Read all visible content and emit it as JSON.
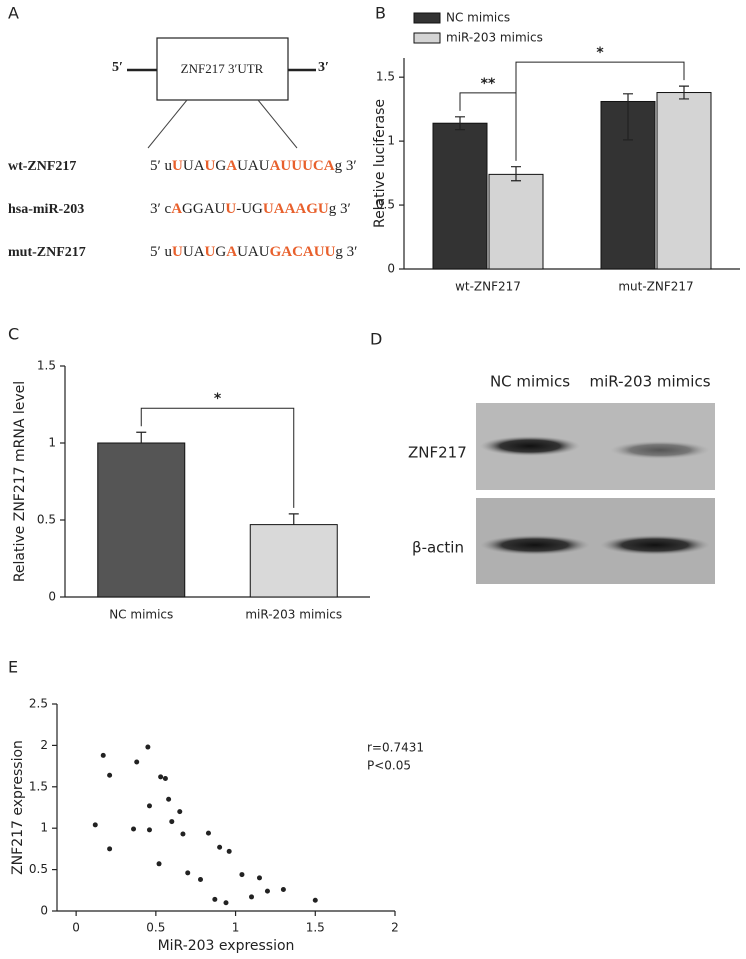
{
  "panel_a": {
    "label": "A",
    "box_label": "ZNF217 3′UTR",
    "five_prime": "5′",
    "three_prime": "3′",
    "rows": [
      {
        "name": "wt-ZNF217",
        "sequence": [
          {
            "text": "5′ u"
          },
          {
            "text": "U",
            "highlight": true
          },
          {
            "text": "UA"
          },
          {
            "text": "U",
            "highlight": true
          },
          {
            "text": "G"
          },
          {
            "text": "A",
            "highlight": true
          },
          {
            "text": "UAU"
          },
          {
            "text": "AUUUCA",
            "highlight": true
          },
          {
            "text": "g 3′"
          }
        ]
      },
      {
        "name": "hsa-miR-203",
        "sequence": [
          {
            "text": "3′ c"
          },
          {
            "text": "A",
            "highlight": true
          },
          {
            "text": "GGAU"
          },
          {
            "text": "U",
            "highlight": true
          },
          {
            "text": "-UG"
          },
          {
            "text": "UAAAGU",
            "highlight": true
          },
          {
            "text": "g 3′"
          }
        ]
      },
      {
        "name": "mut-ZNF217",
        "sequence": [
          {
            "text": "5′ u"
          },
          {
            "text": "U",
            "highlight": true
          },
          {
            "text": "UA"
          },
          {
            "text": "U",
            "highlight": true
          },
          {
            "text": "G"
          },
          {
            "text": "A",
            "highlight": true
          },
          {
            "text": "UAU"
          },
          {
            "text": "GACAUU",
            "highlight": true
          },
          {
            "text": "g 3′"
          }
        ]
      }
    ]
  },
  "chart_data": [
    {
      "type": "bar",
      "panel_label": "B",
      "ylabel": "Relative luciferase",
      "categories": [
        "wt-ZNF217",
        "mut-ZNF217"
      ],
      "series": [
        {
          "name": "NC mimics",
          "color": "#333333",
          "values": [
            1.14,
            1.31
          ],
          "error_minus": [
            0.05,
            0.3
          ],
          "error_plus": [
            0.05,
            0.06
          ]
        },
        {
          "name": "miR-203 mimics",
          "color": "#d4d4d4",
          "values": [
            0.74,
            1.38
          ],
          "error_minus": [
            0.05,
            0.05
          ],
          "error_plus": [
            0.06,
            0.05
          ]
        }
      ],
      "ylim": [
        0,
        1.65
      ],
      "yticks": [
        0,
        0.5,
        1,
        1.5
      ],
      "significance": [
        "**",
        "*"
      ],
      "legend": "top-left"
    },
    {
      "type": "bar",
      "panel_label": "C",
      "ylabel": "Relative ZNF217 mRNA level",
      "categories": [
        "NC mimics",
        "miR-203 mimics"
      ],
      "values": [
        1.0,
        0.47
      ],
      "errors": [
        0.07,
        0.07
      ],
      "colors": [
        "#555555",
        "#d9d9d9"
      ],
      "ylim": [
        0,
        1.5
      ],
      "yticks": [
        0,
        0.5,
        1,
        1.5
      ],
      "significance": [
        "*"
      ]
    },
    {
      "type": "scatter",
      "panel_label": "E",
      "xlabel": "MiR-203 expression",
      "ylabel": "ZNF217 expression",
      "x": [
        0.12,
        0.17,
        0.21,
        0.21,
        0.36,
        0.38,
        0.45,
        0.46,
        0.46,
        0.52,
        0.53,
        0.56,
        0.58,
        0.6,
        0.65,
        0.67,
        0.7,
        0.78,
        0.83,
        0.87,
        0.9,
        0.96,
        0.94,
        1.04,
        1.1,
        1.15,
        1.2,
        1.3,
        1.5
      ],
      "values": [
        1.04,
        1.88,
        1.64,
        0.75,
        0.99,
        1.8,
        1.98,
        1.27,
        0.98,
        0.57,
        1.62,
        1.6,
        1.35,
        1.08,
        1.2,
        0.93,
        0.46,
        0.38,
        0.94,
        0.14,
        0.77,
        0.72,
        0.1,
        0.44,
        0.17,
        0.4,
        0.24,
        0.26,
        0.13
      ],
      "color": "#222222",
      "xlim": [
        -0.12,
        2
      ],
      "ylim": [
        0,
        2.5
      ],
      "xticks": [
        0,
        0.5,
        1,
        1.5,
        2
      ],
      "yticks": [
        0,
        0.5,
        1,
        1.5,
        2,
        2.5
      ],
      "annotations": [
        "r=0.7431",
        "P<0.05"
      ]
    }
  ],
  "panel_d": {
    "label": "D",
    "lanes": [
      "NC mimics",
      "miR-203 mimics"
    ],
    "rows": [
      "ZNF217",
      "β-actin"
    ]
  }
}
